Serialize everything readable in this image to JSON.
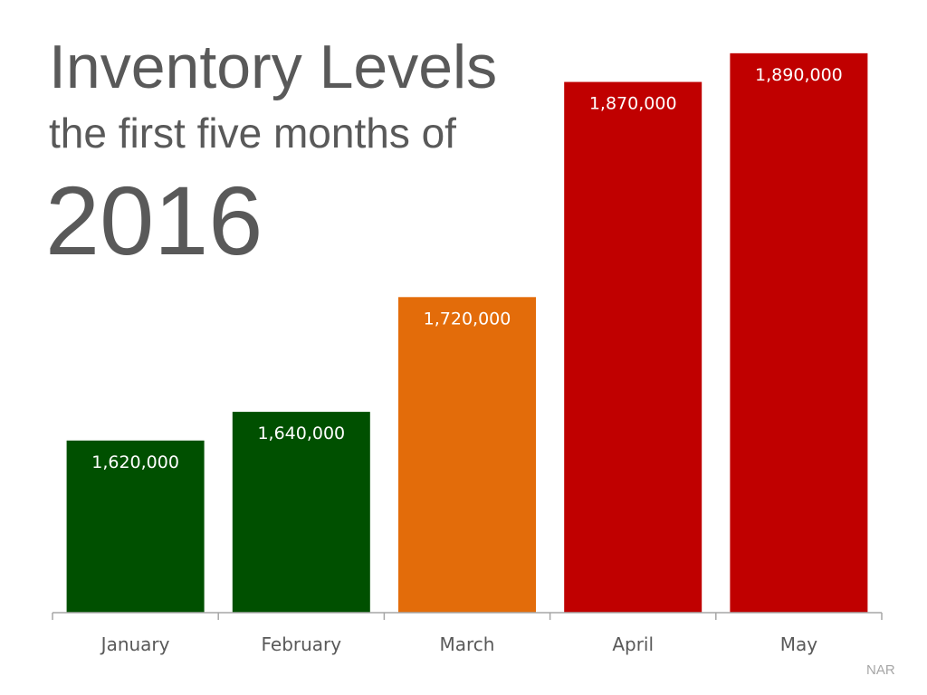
{
  "chart_data": {
    "type": "bar",
    "title": "Inventory Levels",
    "subtitle": "the first five months of",
    "year": "2016",
    "categories": [
      "January",
      "February",
      "March",
      "April",
      "May"
    ],
    "values": [
      1620000,
      1640000,
      1720000,
      1870000,
      1890000
    ],
    "data_labels": [
      "1,620,000",
      "1,640,000",
      "1,720,000",
      "1,870,000",
      "1,890,000"
    ],
    "colors": [
      "#005000",
      "#005000",
      "#E36C0A",
      "#C00000",
      "#C00000"
    ],
    "xlabel": "",
    "ylabel": "",
    "ylim": [
      1500000,
      1920000
    ],
    "grid": false,
    "source": "NAR"
  }
}
